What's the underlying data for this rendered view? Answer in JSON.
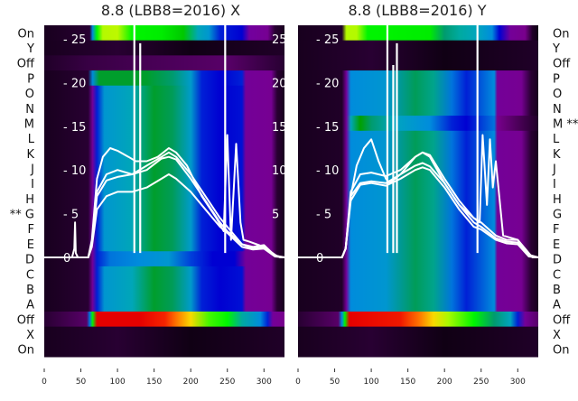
{
  "chart_data": {
    "type": "heatmap",
    "row_labels": [
      "On",
      "Y",
      "Off",
      "P",
      "O",
      "N",
      "M",
      "L",
      "K",
      "J",
      "I",
      "H",
      "G",
      "F",
      "E",
      "D",
      "C",
      "B",
      "A",
      "Off",
      "X",
      "On"
    ],
    "x_ticks": [
      0,
      50,
      100,
      150,
      200,
      250,
      300
    ],
    "x_range": [
      0,
      328
    ],
    "y_overlay_ticks": [
      0,
      5,
      10,
      15,
      20,
      25
    ],
    "y_overlay_range": [
      -11.5,
      26.5
    ],
    "profiles": {
      "dark": [
        [
          0,
          0.03
        ],
        [
          100,
          0.05
        ],
        [
          200,
          0.02
        ],
        [
          328,
          0.04
        ]
      ],
      "darkpurple": [
        [
          0,
          0.04
        ],
        [
          60,
          0.06
        ],
        [
          150,
          0.07
        ],
        [
          250,
          0.08
        ],
        [
          328,
          0.05
        ]
      ],
      "topX": [
        [
          0,
          0.03
        ],
        [
          62,
          0.05
        ],
        [
          66,
          0.3
        ],
        [
          72,
          0.6
        ],
        [
          80,
          0.66
        ],
        [
          100,
          0.67
        ],
        [
          120,
          0.6
        ],
        [
          160,
          0.59
        ],
        [
          190,
          0.55
        ],
        [
          210,
          0.36
        ],
        [
          225,
          0.32
        ],
        [
          240,
          0.22
        ],
        [
          270,
          0.2
        ],
        [
          280,
          0.13
        ],
        [
          305,
          0.11
        ],
        [
          315,
          0.05
        ],
        [
          328,
          0.03
        ]
      ],
      "topY": [
        [
          0,
          0.03
        ],
        [
          60,
          0.04
        ],
        [
          66,
          0.66
        ],
        [
          80,
          0.66
        ],
        [
          95,
          0.6
        ],
        [
          180,
          0.59
        ],
        [
          200,
          0.45
        ],
        [
          220,
          0.4
        ],
        [
          245,
          0.35
        ],
        [
          265,
          0.3
        ],
        [
          275,
          0.2
        ],
        [
          290,
          0.12
        ],
        [
          310,
          0.1
        ],
        [
          320,
          0.04
        ],
        [
          328,
          0.02
        ]
      ],
      "mainX": [
        [
          0,
          0.03
        ],
        [
          60,
          0.05
        ],
        [
          66,
          0.12
        ],
        [
          72,
          0.22
        ],
        [
          82,
          0.32
        ],
        [
          120,
          0.36
        ],
        [
          150,
          0.48
        ],
        [
          175,
          0.46
        ],
        [
          200,
          0.33
        ],
        [
          215,
          0.22
        ],
        [
          240,
          0.2
        ],
        [
          270,
          0.21
        ],
        [
          275,
          0.12
        ],
        [
          310,
          0.11
        ],
        [
          318,
          0.05
        ],
        [
          328,
          0.03
        ]
      ],
      "greenX": [
        [
          0,
          0.03
        ],
        [
          60,
          0.05
        ],
        [
          66,
          0.3
        ],
        [
          75,
          0.48
        ],
        [
          140,
          0.48
        ],
        [
          175,
          0.45
        ],
        [
          200,
          0.33
        ],
        [
          215,
          0.22
        ],
        [
          240,
          0.2
        ],
        [
          270,
          0.22
        ],
        [
          275,
          0.12
        ],
        [
          310,
          0.11
        ],
        [
          318,
          0.05
        ],
        [
          328,
          0.03
        ]
      ],
      "dX": [
        [
          0,
          0.03
        ],
        [
          60,
          0.05
        ],
        [
          66,
          0.12
        ],
        [
          72,
          0.22
        ],
        [
          90,
          0.28
        ],
        [
          130,
          0.3
        ],
        [
          170,
          0.32
        ],
        [
          200,
          0.24
        ],
        [
          230,
          0.2
        ],
        [
          260,
          0.2
        ],
        [
          275,
          0.12
        ],
        [
          310,
          0.11
        ],
        [
          318,
          0.05
        ],
        [
          328,
          0.03
        ]
      ],
      "offX": [
        [
          0,
          0.05
        ],
        [
          58,
          0.08
        ],
        [
          62,
          0.28
        ],
        [
          66,
          0.6
        ],
        [
          72,
          0.9
        ],
        [
          130,
          0.9
        ],
        [
          165,
          0.87
        ],
        [
          180,
          0.82
        ],
        [
          200,
          0.74
        ],
        [
          225,
          0.62
        ],
        [
          250,
          0.6
        ],
        [
          270,
          0.4
        ],
        [
          295,
          0.3
        ],
        [
          305,
          0.22
        ],
        [
          312,
          0.12
        ],
        [
          328,
          0.1
        ]
      ],
      "mainY": [
        [
          0,
          0.03
        ],
        [
          60,
          0.04
        ],
        [
          66,
          0.12
        ],
        [
          72,
          0.3
        ],
        [
          120,
          0.32
        ],
        [
          160,
          0.46
        ],
        [
          185,
          0.42
        ],
        [
          210,
          0.28
        ],
        [
          230,
          0.22
        ],
        [
          268,
          0.3
        ],
        [
          272,
          0.12
        ],
        [
          305,
          0.11
        ],
        [
          318,
          0.05
        ],
        [
          328,
          0.03
        ]
      ],
      "mY": [
        [
          0,
          0.03
        ],
        [
          60,
          0.04
        ],
        [
          66,
          0.12
        ],
        [
          72,
          0.35
        ],
        [
          85,
          0.5
        ],
        [
          100,
          0.45
        ],
        [
          130,
          0.35
        ],
        [
          180,
          0.3
        ],
        [
          210,
          0.22
        ],
        [
          230,
          0.2
        ],
        [
          268,
          0.28
        ],
        [
          272,
          0.1
        ],
        [
          328,
          0.04
        ]
      ],
      "offY": [
        [
          0,
          0.05
        ],
        [
          55,
          0.08
        ],
        [
          60,
          0.3
        ],
        [
          64,
          0.6
        ],
        [
          70,
          0.9
        ],
        [
          140,
          0.88
        ],
        [
          165,
          0.82
        ],
        [
          185,
          0.74
        ],
        [
          205,
          0.65
        ],
        [
          240,
          0.6
        ],
        [
          268,
          0.45
        ],
        [
          290,
          0.35
        ],
        [
          300,
          0.22
        ],
        [
          310,
          0.12
        ],
        [
          328,
          0.08
        ]
      ]
    },
    "panels": [
      {
        "title": "8.8 (LBB8=2016) X",
        "marker_row": "G",
        "marker": "**",
        "rows": [
          "topX",
          "dark",
          "darkpurple",
          "greenX",
          "mainX",
          "mainX",
          "mainX",
          "mainX",
          "mainX",
          "mainX",
          "mainX",
          "mainX",
          "mainX",
          "mainX",
          "mainX",
          "dX",
          "mainX",
          "mainX",
          "mainX",
          "offX",
          "dark",
          "dark"
        ],
        "series": [
          {
            "x": [
              0,
              38,
              41,
              42,
              43,
              46,
              60,
              65,
              72,
              80,
              90,
              100,
              115,
              125,
              140,
              155,
              170,
              180,
              195,
              215,
              235,
              245,
              250,
              255,
              262,
              268,
              272,
              280,
              290,
              300,
              315,
              322,
              328
            ],
            "y": [
              0,
              0,
              1,
              4,
              0.5,
              0,
              0,
              2,
              9,
              11.5,
              12.5,
              12.2,
              11.5,
              11,
              11,
              11.5,
              12.5,
              12,
              10.5,
              7,
              4.5,
              3,
              14,
              2,
              13,
              4,
              2,
              1.8,
              1.5,
              1.2,
              0.3,
              0,
              0
            ]
          },
          {
            "x": [
              0,
              60,
              65,
              72,
              85,
              100,
              120,
              140,
              160,
              170,
              180,
              200,
              220,
              240,
              250,
              270,
              285,
              300,
              315,
              328
            ],
            "y": [
              0,
              0,
              1.5,
              7.5,
              9.5,
              10,
              9.5,
              10,
              11.3,
              11.5,
              11.2,
              9,
              6.5,
              4,
              3,
              1.5,
              1,
              1.2,
              0.2,
              0
            ]
          },
          {
            "x": [
              0,
              60,
              65,
              72,
              85,
              100,
              120,
              140,
              160,
              170,
              180,
              200,
              220,
              240,
              250,
              270,
              285,
              300,
              315,
              328
            ],
            "y": [
              0,
              0,
              1.5,
              7,
              8.8,
              9.2,
              9.5,
              10.5,
              11.5,
              12,
              11.5,
              9.5,
              7,
              4.5,
              3.5,
              1.5,
              1.2,
              1.4,
              0.2,
              0
            ]
          },
          {
            "x": [
              0,
              60,
              65,
              72,
              85,
              100,
              120,
              140,
              160,
              170,
              180,
              200,
              220,
              240,
              250,
              270,
              285,
              300,
              315,
              328
            ],
            "y": [
              0,
              0,
              1.2,
              5.5,
              7,
              7.5,
              7.5,
              8,
              9,
              9.5,
              9,
              7.5,
              5.5,
              3.5,
              2.8,
              1.2,
              0.9,
              1,
              0.1,
              0
            ]
          }
        ],
        "spikes": [
          {
            "x": 123,
            "y": 27
          },
          {
            "x": 131,
            "y": 24.5
          },
          {
            "x": 247,
            "y": 27
          }
        ]
      },
      {
        "title": "8.8 (LBB8=2016) Y",
        "marker_row": "M",
        "marker": "**",
        "rows": [
          "topY",
          "dark",
          "dark",
          "mainY",
          "mainY",
          "mainY",
          "mY",
          "mainY",
          "mainY",
          "mainY",
          "mainY",
          "mainY",
          "mainY",
          "mainY",
          "mainY",
          "mainY",
          "mainY",
          "mainY",
          "mainY",
          "offY",
          "dark",
          "dark"
        ],
        "series": [
          {
            "x": [
              0,
              60,
              65,
              72,
              80,
              90,
              95,
              100,
              110,
              120,
              125,
              140,
              160,
              170,
              180,
              200,
              220,
              240,
              248,
              252,
              258,
              262,
              266,
              270,
              280,
              300,
              310,
              320,
              328
            ],
            "y": [
              0,
              0,
              1,
              7,
              10.5,
              12.5,
              13,
              13.5,
              11,
              9,
              8.5,
              9.5,
              11.5,
              12,
              11.5,
              8.5,
              6,
              4.5,
              4,
              14,
              6,
              13.5,
              8,
              11,
              2.5,
              2,
              1,
              0,
              0
            ]
          },
          {
            "x": [
              0,
              60,
              65,
              72,
              85,
              100,
              120,
              140,
              160,
              170,
              180,
              200,
              220,
              240,
              250,
              270,
              285,
              300,
              315,
              328
            ],
            "y": [
              0,
              0,
              1,
              7.5,
              9.5,
              9.7,
              9.3,
              10,
              11.5,
              12,
              11.7,
              9,
              6.5,
              4.5,
              4,
              2.5,
              2,
              2,
              0.3,
              0
            ]
          },
          {
            "x": [
              0,
              60,
              65,
              72,
              85,
              100,
              120,
              140,
              160,
              170,
              180,
              200,
              220,
              240,
              250,
              270,
              285,
              300,
              315,
              328
            ],
            "y": [
              0,
              0,
              1,
              7,
              8.5,
              8.7,
              8.5,
              9.5,
              10.5,
              10.8,
              10.4,
              8.5,
              6,
              4,
              3.5,
              2.2,
              1.8,
              1.7,
              0.2,
              0
            ]
          },
          {
            "x": [
              0,
              60,
              65,
              72,
              85,
              100,
              120,
              140,
              160,
              170,
              180,
              200,
              220,
              240,
              250,
              270,
              285,
              300,
              315,
              328
            ],
            "y": [
              0,
              0,
              1,
              6.5,
              8.3,
              8.5,
              8.2,
              9,
              10,
              10.3,
              10,
              8,
              5.5,
              3.5,
              3.2,
              2,
              1.6,
              1.5,
              0.1,
              0
            ]
          }
        ],
        "spikes": [
          {
            "x": 122,
            "y": 27
          },
          {
            "x": 130,
            "y": 22
          },
          {
            "x": 135,
            "y": 24.5
          },
          {
            "x": 245,
            "y": 27
          }
        ]
      }
    ]
  }
}
